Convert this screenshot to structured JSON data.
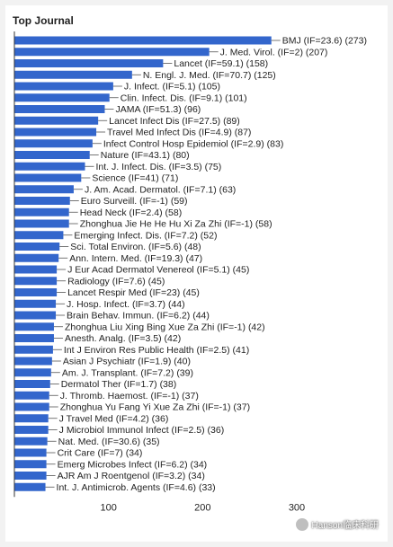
{
  "chart_data": {
    "type": "bar",
    "orientation": "horizontal",
    "title": "Top Journal",
    "xlabel": "",
    "ylabel": "",
    "xlim": [
      0,
      300
    ],
    "xticks": [
      100,
      200,
      300
    ],
    "grid": false,
    "colors": {
      "bar": "#3366cc",
      "axis": "#333333",
      "text": "#222222"
    },
    "categories": [
      "BMJ (IF=23.6) (273)",
      "J. Med. Virol. (IF=2) (207)",
      "Lancet (IF=59.1) (158)",
      "N. Engl. J. Med. (IF=70.7) (125)",
      "J. Infect. (IF=5.1) (105)",
      "Clin. Infect. Dis. (IF=9.1) (101)",
      "JAMA (IF=51.3) (96)",
      "Lancet Infect Dis (IF=27.5) (89)",
      "Travel Med Infect Dis (IF=4.9) (87)",
      "Infect Control Hosp Epidemiol (IF=2.9) (83)",
      "Nature (IF=43.1) (80)",
      "Int. J. Infect. Dis. (IF=3.5) (75)",
      "Science (IF=41) (71)",
      "J. Am. Acad. Dermatol. (IF=7.1) (63)",
      "Euro Surveill. (IF=-1) (59)",
      "Head Neck (IF=2.4) (58)",
      "Zhonghua Jie He He Hu Xi Za Zhi (IF=-1) (58)",
      "Emerging Infect. Dis. (IF=7.2) (52)",
      "Sci. Total Environ. (IF=5.6) (48)",
      "Ann. Intern. Med. (IF=19.3) (47)",
      "J Eur Acad Dermatol Venereol (IF=5.1) (45)",
      "Radiology (IF=7.6) (45)",
      "Lancet Respir Med (IF=23) (45)",
      "J. Hosp. Infect. (IF=3.7) (44)",
      "Brain Behav. Immun. (IF=6.2) (44)",
      "Zhonghua Liu Xing Bing Xue Za Zhi (IF=-1) (42)",
      "Anesth. Analg. (IF=3.5) (42)",
      "Int J Environ Res Public Health (IF=2.5) (41)",
      "Asian J Psychiatr (IF=1.9) (40)",
      "Am. J. Transplant. (IF=7.2) (39)",
      "Dermatol Ther (IF=1.7) (38)",
      "J. Thromb. Haemost. (IF=-1) (37)",
      "Zhonghua Yu Fang Yi Xue Za Zhi (IF=-1) (37)",
      "J Travel Med (IF=4.2) (36)",
      "J Microbiol Immunol Infect (IF=2.5) (36)",
      "Nat. Med. (IF=30.6) (35)",
      "Crit Care (IF=7) (34)",
      "Emerg Microbes Infect (IF=6.2) (34)",
      "AJR Am J Roentgenol (IF=3.2) (34)",
      "Int. J. Antimicrob. Agents (IF=4.6) (33)"
    ],
    "values": [
      273,
      207,
      158,
      125,
      105,
      101,
      96,
      89,
      87,
      83,
      80,
      75,
      71,
      63,
      59,
      58,
      58,
      52,
      48,
      47,
      45,
      45,
      45,
      44,
      44,
      42,
      42,
      41,
      40,
      39,
      38,
      37,
      37,
      36,
      36,
      35,
      34,
      34,
      34,
      33
    ]
  },
  "watermark": {
    "text": "Hanson临床科研",
    "icon": "wechat-icon"
  }
}
